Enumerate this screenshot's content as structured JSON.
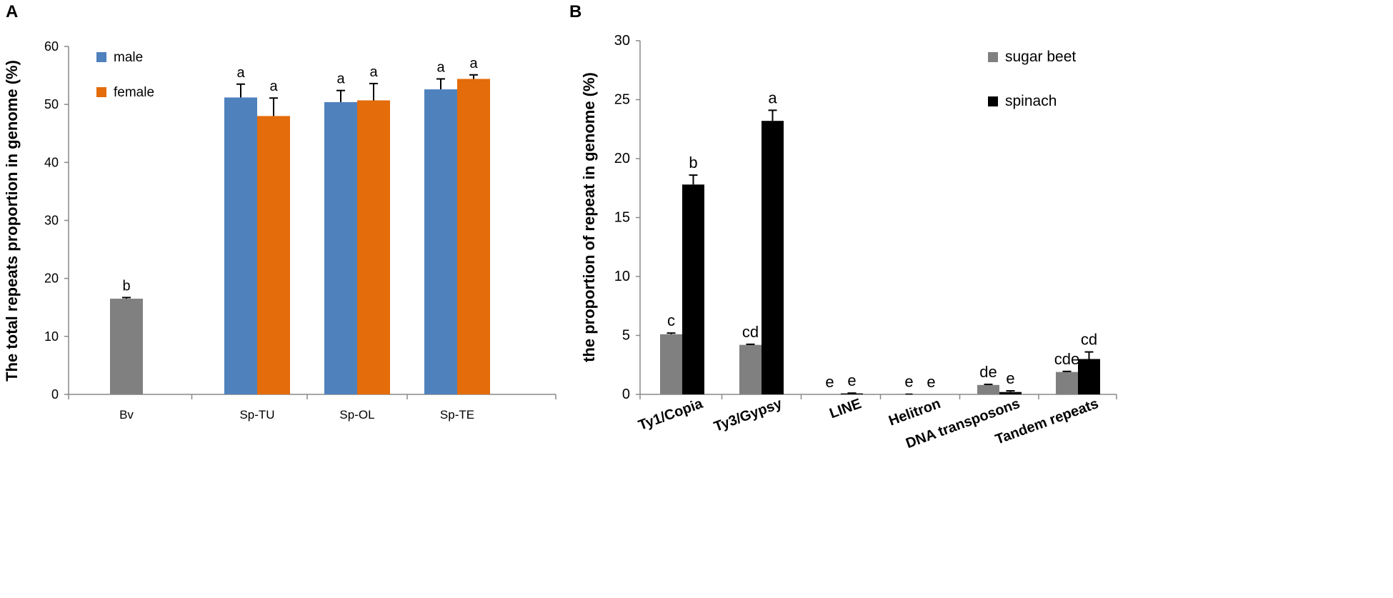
{
  "colors": {
    "male": "#4f81bd",
    "female": "#e46c0a",
    "bv": "#808080",
    "sugar_beet": "#808080",
    "spinach": "#000000",
    "axis": "#888888",
    "text": "#000000"
  },
  "chart_data": [
    {
      "panel_label": "A",
      "type": "bar",
      "ylabel": "The total repeats proportion in genome (%)",
      "xlabel": "",
      "ylim": [
        0,
        60
      ],
      "yticks": [
        0,
        10,
        20,
        30,
        40,
        50,
        60
      ],
      "grid": false,
      "legend_position": "top-left",
      "categories": [
        "Bv",
        "Sp-TU",
        "Sp-OL",
        "Sp-TE"
      ],
      "series": [
        {
          "name": "Bv",
          "legend": false,
          "color_key": "bv",
          "values": [
            16.5,
            null,
            null,
            null
          ],
          "errors": [
            0.2,
            null,
            null,
            null
          ],
          "letters": [
            "b",
            null,
            null,
            null
          ]
        },
        {
          "name": "male",
          "legend": true,
          "color_key": "male",
          "values": [
            null,
            51.2,
            50.4,
            52.6
          ],
          "errors": [
            null,
            2.3,
            2.0,
            1.8
          ],
          "letters": [
            null,
            "a",
            "a",
            "a"
          ]
        },
        {
          "name": "female",
          "legend": true,
          "color_key": "female",
          "values": [
            null,
            48.0,
            50.7,
            54.4
          ],
          "errors": [
            null,
            3.1,
            2.9,
            0.7
          ],
          "letters": [
            null,
            "a",
            "a",
            "a"
          ]
        }
      ]
    },
    {
      "panel_label": "B",
      "type": "bar",
      "ylabel": "the proportion of repeat in genome (%)",
      "xlabel": "",
      "ylim": [
        0,
        30
      ],
      "yticks": [
        0,
        5,
        10,
        15,
        20,
        25,
        30
      ],
      "grid": false,
      "legend_position": "top-right",
      "categories": [
        "Ty1/Copia",
        "Ty3/Gypsy",
        "LINE",
        "Helitron",
        "DNA transposons",
        "Tandem repeats"
      ],
      "series": [
        {
          "name": "sugar beet",
          "legend": true,
          "color_key": "sugar_beet",
          "values": [
            5.1,
            4.2,
            0.0,
            0.03,
            0.8,
            1.9
          ],
          "errors": [
            0.1,
            0.05,
            0.0,
            0.0,
            0.05,
            0.05
          ],
          "letters": [
            "c",
            "cd",
            "e",
            "e",
            "de",
            "cde"
          ]
        },
        {
          "name": "spinach",
          "legend": true,
          "color_key": "spinach",
          "values": [
            17.8,
            23.2,
            0.08,
            0.0,
            0.2,
            3.0
          ],
          "errors": [
            0.8,
            0.9,
            0.03,
            0.0,
            0.1,
            0.6
          ],
          "letters": [
            "b",
            "a",
            "e",
            "e",
            "e",
            "cd"
          ]
        }
      ]
    }
  ]
}
